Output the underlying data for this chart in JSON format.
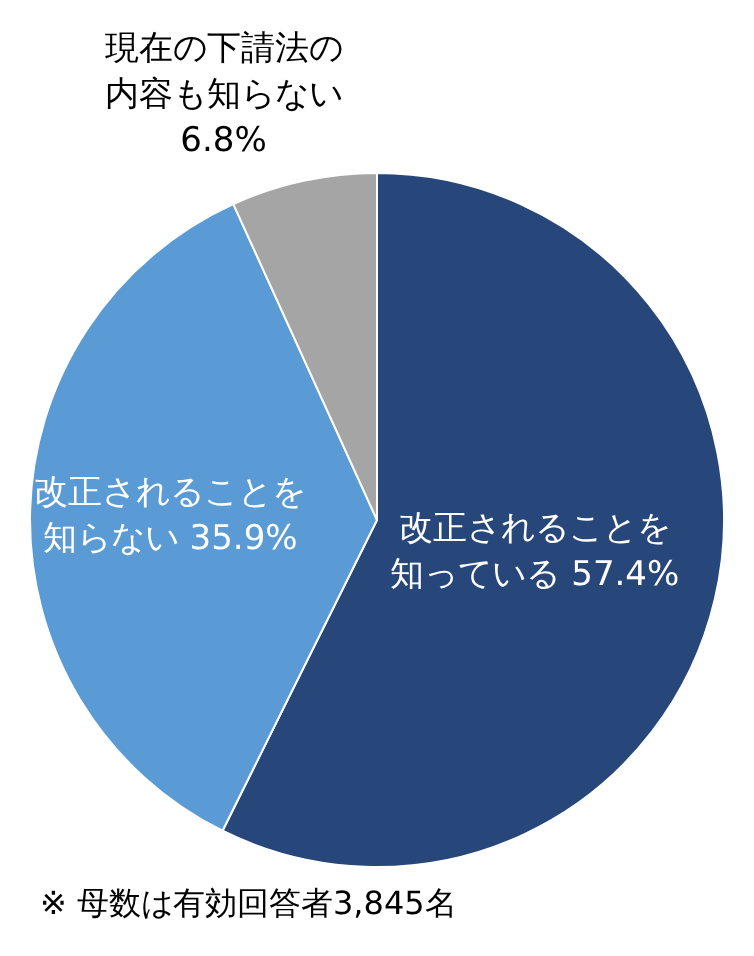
{
  "chart_data": {
    "type": "pie",
    "categories": [
      "改正されることを知っている",
      "改正されることを知らない",
      "現在の下請法の内容も知らない"
    ],
    "values": [
      57.4,
      35.9,
      6.8
    ],
    "value_labels": [
      "57.4%",
      "35.9%",
      "6.8%"
    ],
    "colors": [
      "#27467a",
      "#5b9bd5",
      "#a5a5a5"
    ],
    "legend": false,
    "annotations": [
      "※ 母数は有効回答者3,845名"
    ]
  }
}
